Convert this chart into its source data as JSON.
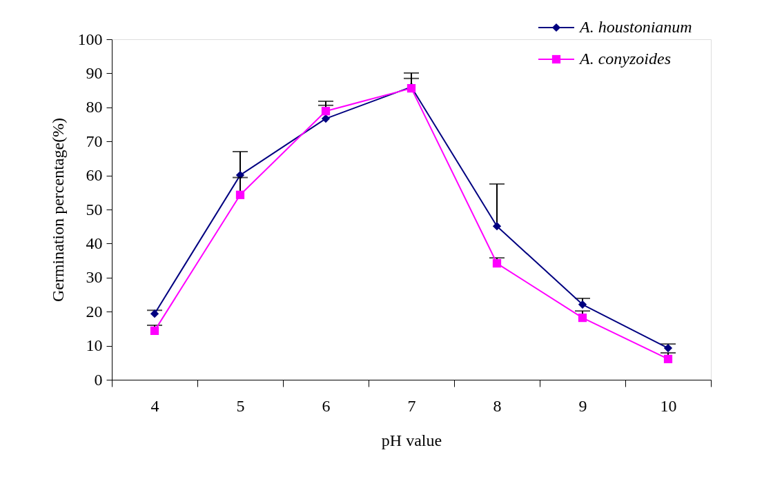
{
  "chart_data": {
    "type": "line",
    "xlabel": "pH value",
    "ylabel": "Germination percentage(%)",
    "categories": [
      "4",
      "5",
      "6",
      "7",
      "8",
      "9",
      "10"
    ],
    "ylim": [
      0,
      100
    ],
    "yticks": [
      0,
      10,
      20,
      30,
      40,
      50,
      60,
      70,
      80,
      90,
      100
    ],
    "grid": false,
    "legend": "top right",
    "line_style": "solid",
    "series": [
      {
        "name": "A. houstonianum",
        "color": "#000080",
        "marker": "diamond",
        "values": [
          19.4,
          60.1,
          76.7,
          86,
          45.1,
          22.1,
          9.3
        ],
        "errors": [
          [
            19.4,
            20.4
          ],
          [
            60.1,
            67
          ],
          [
            76.7,
            81.8
          ],
          [
            86,
            90.1
          ],
          [
            45.1,
            57.5
          ],
          [
            22.1,
            23.9
          ],
          [
            9.3,
            10.5
          ]
        ]
      },
      {
        "name": "A. conyzoides",
        "color": "#ff00ff",
        "marker": "square",
        "values": [
          14.4,
          54.3,
          78.9,
          85.6,
          34.2,
          18.2,
          6.1
        ],
        "errors": [
          [
            14.4,
            16
          ],
          [
            54.3,
            59.4
          ],
          [
            78.9,
            80.6
          ],
          [
            85.6,
            88.5
          ],
          [
            34.2,
            35.8
          ],
          [
            18.2,
            20.2
          ],
          [
            6.1,
            7.9
          ]
        ]
      }
    ]
  }
}
